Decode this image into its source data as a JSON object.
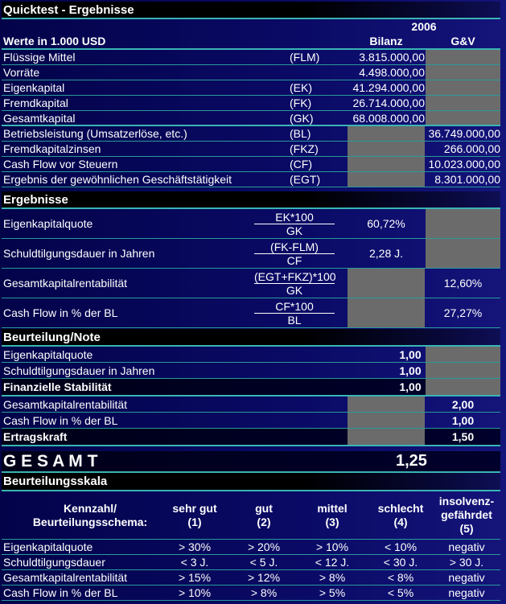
{
  "title": "Quicktest - Ergebnisse",
  "header": {
    "year": "2006",
    "units": "Werte in 1.000 USD",
    "col_bilanz": "Bilanz",
    "col_gv": "G&V"
  },
  "inputs": [
    {
      "label": "Flüssige Mittel",
      "abbr": "(FLM)",
      "bilanz": "3.815.000,00",
      "gv": null
    },
    {
      "label": "Vorräte",
      "abbr": "",
      "bilanz": "4.498.000,00",
      "gv": null
    },
    {
      "label": "Eigenkapital",
      "abbr": "(EK)",
      "bilanz": "41.294.000,00",
      "gv": null
    },
    {
      "label": "Fremdkapital",
      "abbr": "(FK)",
      "bilanz": "26.714.000,00",
      "gv": null
    },
    {
      "label": "Gesamtkapital",
      "abbr": "(GK)",
      "bilanz": "68.008.000,00",
      "gv": null
    },
    {
      "label": "Betriebsleistung (Umsatzerlöse, etc.)",
      "abbr": "(BL)",
      "bilanz": null,
      "gv": "36.749.000,00"
    },
    {
      "label": "Fremdkapitalzinsen",
      "abbr": "(FKZ)",
      "bilanz": null,
      "gv": "266.000,00"
    },
    {
      "label": "Cash Flow vor Steuern",
      "abbr": "(CF)",
      "bilanz": null,
      "gv": "10.023.000,00"
    },
    {
      "label": "Ergebnis der gewöhnlichen Geschäftstätigkeit",
      "abbr": "(EGT)",
      "bilanz": null,
      "gv": "8.301.000,00"
    }
  ],
  "results_title": "Ergebnisse",
  "results": [
    {
      "label": "Eigenkapitalquote",
      "numerator": "EK*100",
      "denominator": "GK",
      "bilanz": "60,72%",
      "gv": null
    },
    {
      "label": "Schuldtilgungsdauer in Jahren",
      "numerator": "(FK-FLM)",
      "denominator": "CF",
      "bilanz": "2,28 J.",
      "gv": null
    },
    {
      "label": "Gesamtkapitalrentabilität",
      "numerator": "(EGT+FKZ)*100",
      "denominator": "GK",
      "bilanz": null,
      "gv": "12,60%"
    },
    {
      "label": "Cash Flow in % der BL",
      "numerator": "CF*100",
      "denominator": "BL",
      "bilanz": null,
      "gv": "27,27%"
    }
  ],
  "rating_title": "Beurteilung/Note",
  "ratings": [
    {
      "label": "Eigenkapitalquote",
      "bilanz": "1,00",
      "gv": null,
      "summary": false
    },
    {
      "label": "Schuldtilgungsdauer in Jahren",
      "bilanz": "1,00",
      "gv": null,
      "summary": false
    },
    {
      "label": "Finanzielle Stabilität",
      "bilanz": "1,00",
      "gv": null,
      "summary": true
    },
    {
      "label": "Gesamtkapitalrentabilität",
      "bilanz": null,
      "gv": "2,00",
      "summary": false
    },
    {
      "label": "Cash Flow in % der BL",
      "bilanz": null,
      "gv": "1,00",
      "summary": false
    },
    {
      "label": "Ertragskraft",
      "bilanz": null,
      "gv": "1,50",
      "summary": true
    }
  ],
  "total": {
    "label": "G E S A M T",
    "value": "1,25"
  },
  "scale_title": "Beurteilungsskala",
  "scale_headers": [
    "Kennzahl/\nBeurteilungsschema:",
    "sehr gut\n(1)",
    "gut\n(2)",
    "mittel\n(3)",
    "schlecht\n(4)",
    "insolvenz-\ngefährdet\n(5)"
  ],
  "scale_rows": [
    [
      "Eigenkapitalquote",
      "> 30%",
      "> 20%",
      "> 10%",
      "< 10%",
      "negativ"
    ],
    [
      "Schuldtilgungsdauer",
      "< 3 J.",
      "< 5 J.",
      "< 12 J.",
      "< 30 J.",
      "> 30 J."
    ],
    [
      "Gesamtkapitalrentabilität",
      "> 15%",
      "> 12%",
      "> 8%",
      "< 8%",
      "negativ"
    ],
    [
      "Cash Flow in % der BL",
      "> 10%",
      "> 8%",
      "> 5%",
      "< 5%",
      "negativ"
    ]
  ]
}
